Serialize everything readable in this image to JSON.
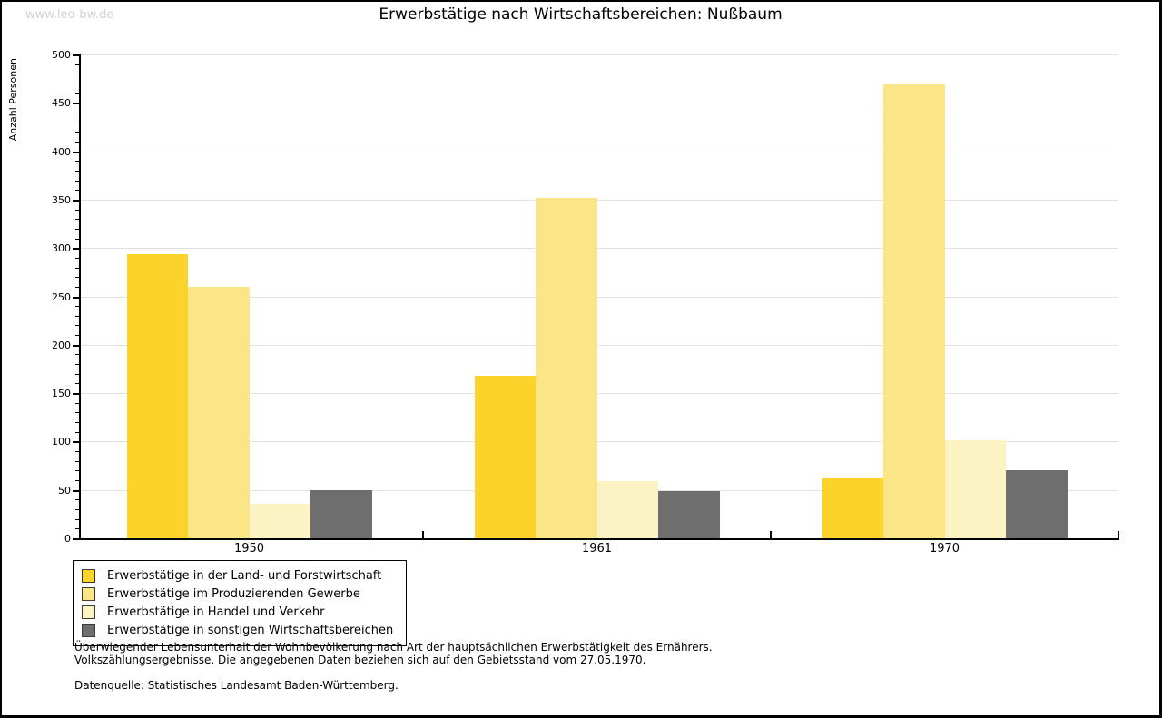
{
  "watermark": "www.leo-bw.de",
  "title": "Erwerbstätige nach Wirtschaftsbereichen: Nußbaum",
  "chart_data": {
    "type": "bar",
    "title": "Erwerbstätige nach Wirtschaftsbereichen: Nußbaum",
    "xlabel": "",
    "ylabel": "Anzahl Personen",
    "ylim": [
      0,
      500
    ],
    "ytick_major": 50,
    "ytick_minor": 10,
    "grid": true,
    "legend_position": "bottom-left",
    "categories": [
      "1950",
      "1961",
      "1970"
    ],
    "series": [
      {
        "name": "Erwerbstätige in der Land- und Forstwirtschaft",
        "color": "#FCD32B",
        "values": [
          294,
          168,
          62
        ]
      },
      {
        "name": "Erwerbstätige im Produzierenden Gewerbe",
        "color": "#FBE687",
        "values": [
          260,
          352,
          469
        ]
      },
      {
        "name": "Erwerbstätige in Handel und Verkehr",
        "color": "#FBF3C4",
        "values": [
          36,
          59,
          101
        ]
      },
      {
        "name": "Erwerbstätige in sonstigen Wirtschaftsbereichen",
        "color": "#6E6E6E",
        "values": [
          50,
          49,
          70
        ]
      }
    ]
  },
  "colors": {
    "grid": "#E2E2E2",
    "axis": "#000000",
    "watermark": "#D2D2D2"
  },
  "footer": {
    "line1": "Überwiegender Lebensunterhalt der Wohnbevölkerung nach Art der hauptsächlichen Erwerbstätigkeit des Ernährers.",
    "line2": "Volkszählungsergebnisse. Die angegebenen Daten beziehen sich auf den Gebietsstand vom 27.05.1970.",
    "source": "Datenquelle: Statistisches Landesamt Baden-Württemberg."
  }
}
